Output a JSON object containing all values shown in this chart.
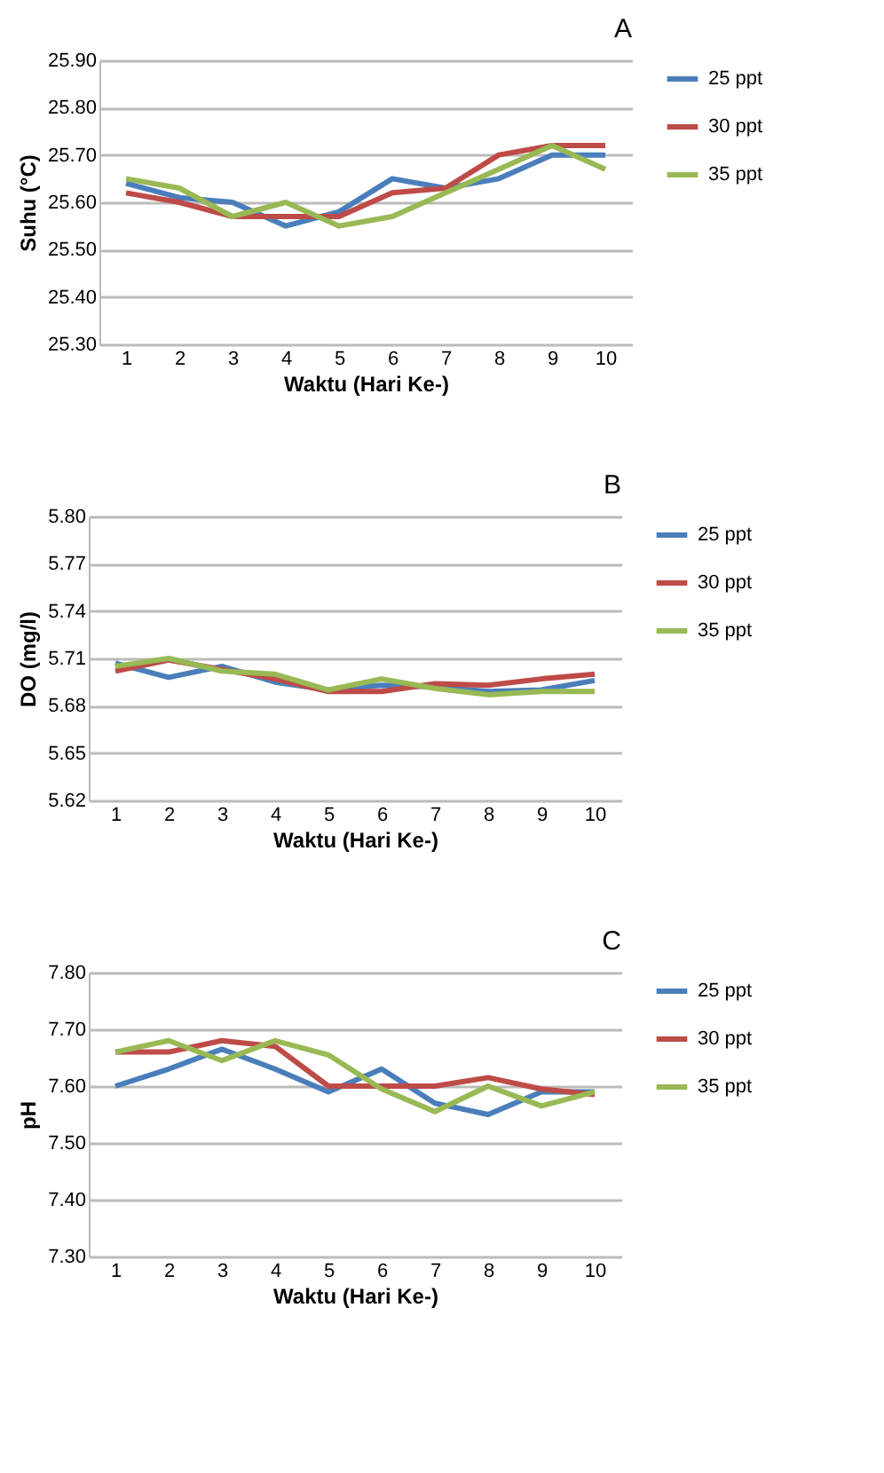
{
  "chart_data": [
    {
      "type": "line",
      "title": "A",
      "xlabel": "Waktu (Hari Ke-)",
      "ylabel": "Suhu (°C)",
      "categories": [
        "1",
        "2",
        "3",
        "4",
        "5",
        "6",
        "7",
        "8",
        "9",
        "10"
      ],
      "ylim": [
        25.3,
        25.9
      ],
      "yticks": [
        {
          "value": 25.3,
          "label": "25.30"
        },
        {
          "value": 25.4,
          "label": "25.40"
        },
        {
          "value": 25.5,
          "label": "25.50"
        },
        {
          "value": 25.6,
          "label": "25.60"
        },
        {
          "value": 25.7,
          "label": "25.70"
        },
        {
          "value": 25.8,
          "label": "25.80"
        },
        {
          "value": 25.9,
          "label": "25.90"
        }
      ],
      "grid": "y",
      "legend": "right",
      "marker": "none",
      "line_style": "solid",
      "series": [
        {
          "name": "25 ppt",
          "color": "#4a7ebb",
          "values": [
            25.64,
            25.61,
            25.6,
            25.55,
            25.58,
            25.65,
            25.63,
            25.65,
            25.7,
            25.7
          ]
        },
        {
          "name": "30 ppt",
          "color": "#be4b48",
          "values": [
            25.62,
            25.6,
            25.57,
            25.57,
            25.57,
            25.62,
            25.63,
            25.7,
            25.72,
            25.72
          ]
        },
        {
          "name": "35 ppt",
          "color": "#98b954",
          "values": [
            25.65,
            25.63,
            25.57,
            25.6,
            25.55,
            25.57,
            25.62,
            25.67,
            25.72,
            25.67
          ]
        }
      ]
    },
    {
      "type": "line",
      "title": "B",
      "xlabel": "Waktu (Hari Ke-)",
      "ylabel": "DO (mg/l)",
      "categories": [
        "1",
        "2",
        "3",
        "4",
        "5",
        "6",
        "7",
        "8",
        "9",
        "10"
      ],
      "ylim": [
        5.62,
        5.8
      ],
      "yticks": [
        5.62,
        5.65,
        5.68,
        5.71,
        5.74,
        5.77,
        {
          "value": 5.8,
          "label": "5.80"
        }
      ],
      "grid": "y",
      "legend": "right",
      "marker": "none",
      "line_style": "solid",
      "series": [
        {
          "name": "25 ppt",
          "color": "#4a7ebb",
          "values": [
            5.707,
            5.698,
            5.705,
            5.695,
            5.69,
            5.693,
            5.692,
            5.689,
            5.69,
            5.696
          ]
        },
        {
          "name": "30 ppt",
          "color": "#be4b48",
          "values": [
            5.702,
            5.709,
            5.703,
            5.697,
            5.689,
            5.689,
            5.694,
            5.693,
            5.697,
            5.7
          ]
        },
        {
          "name": "35 ppt",
          "color": "#98b954",
          "values": [
            5.705,
            5.71,
            5.702,
            5.7,
            5.69,
            5.697,
            5.691,
            5.687,
            5.689,
            5.689
          ]
        }
      ]
    },
    {
      "type": "line",
      "title": "C",
      "xlabel": "Waktu (Hari Ke-)",
      "ylabel": "pH",
      "categories": [
        "1",
        "2",
        "3",
        "4",
        "5",
        "6",
        "7",
        "8",
        "9",
        "10"
      ],
      "ylim": [
        7.3,
        7.8
      ],
      "yticks": [
        {
          "value": 7.3,
          "label": "7.30"
        },
        {
          "value": 7.4,
          "label": "7.40"
        },
        {
          "value": 7.5,
          "label": "7.50"
        },
        {
          "value": 7.6,
          "label": "7.60"
        },
        {
          "value": 7.7,
          "label": "7.70"
        },
        {
          "value": 7.8,
          "label": "7.80"
        }
      ],
      "grid": "y",
      "legend": "right",
      "marker": "none",
      "line_style": "solid",
      "series": [
        {
          "name": "25 ppt",
          "color": "#4a7ebb",
          "values": [
            7.6,
            7.63,
            7.665,
            7.63,
            7.59,
            7.63,
            7.57,
            7.55,
            7.59,
            7.59
          ]
        },
        {
          "name": "30 ppt",
          "color": "#be4b48",
          "values": [
            7.66,
            7.66,
            7.68,
            7.67,
            7.6,
            7.6,
            7.6,
            7.615,
            7.595,
            7.585
          ]
        },
        {
          "name": "35 ppt",
          "color": "#98b954",
          "values": [
            7.66,
            7.68,
            7.645,
            7.68,
            7.655,
            7.595,
            7.555,
            7.6,
            7.565,
            7.59
          ]
        }
      ]
    }
  ]
}
